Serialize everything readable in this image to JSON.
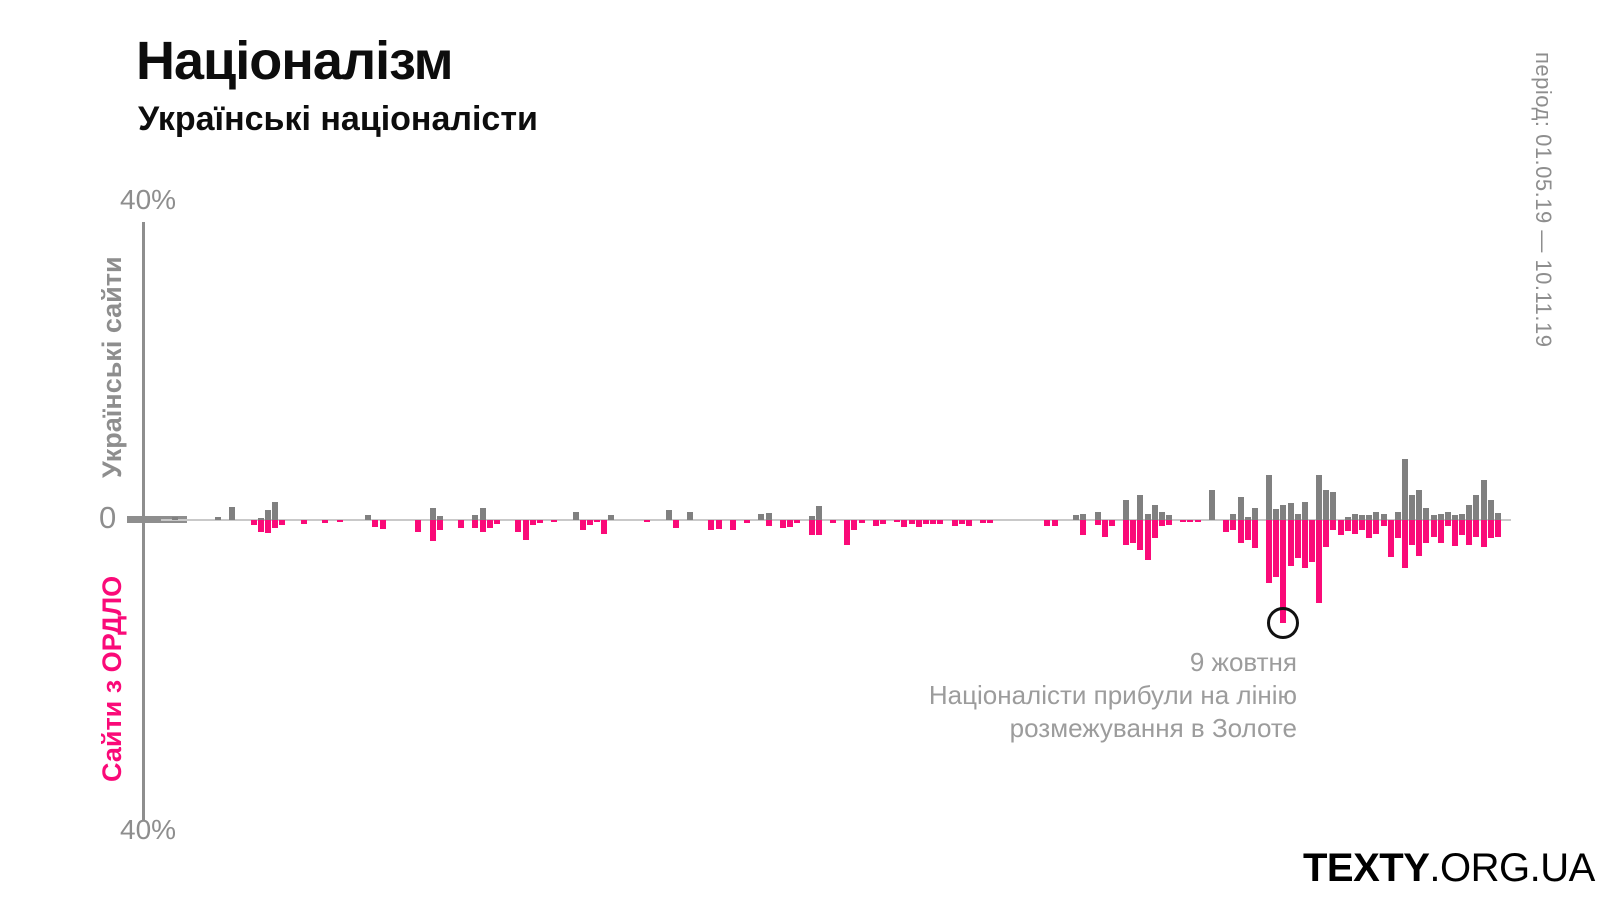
{
  "header": {
    "title": "Націоналізм",
    "subtitle": "Українські націоналісти"
  },
  "period_note": "період: 01.05.19 — 10.11.19",
  "axis": {
    "top_label": "40%",
    "zero_label": "0",
    "bottom_label": "40%",
    "up_series_label": "Українські сайти",
    "down_series_label": "Сайти з ОРДЛО"
  },
  "annotation": {
    "lines": [
      "9 жовтня",
      "Націоналісти прибули на лінію",
      "розмежування в Золоте"
    ],
    "bar_index": 156
  },
  "branding": {
    "bold": "TEXTY",
    "rest": ".ORG.UA"
  },
  "colors": {
    "up": "#808080",
    "down": "#fa0a78",
    "axis": "#8e8e8e",
    "zero_line": "#c9c9c9",
    "annotation_text": "#9c9c9c",
    "circle": "#111111",
    "title": "#0d0d0d"
  },
  "chart_data": {
    "type": "bar",
    "orientation": "diverging-vertical",
    "title": "Націоналізм — Українські націоналісти",
    "unit": "%",
    "ylim": [
      -40,
      40
    ],
    "y_ticks": [
      "40%",
      "0",
      "40%"
    ],
    "x_period": "01.05.19 — 10.11.19",
    "n_bars": 187,
    "grid": false,
    "legend_position": "left-axis-rotated",
    "series": [
      {
        "name": "Українські сайти",
        "direction": "up",
        "color": "#808080"
      },
      {
        "name": "Сайти з ОРДЛО",
        "direction": "down",
        "color": "#fa0a78"
      }
    ],
    "bars_format": [
      "bar_index",
      "up_pct",
      "down_pct"
    ],
    "bars": [
      [
        1,
        0.4,
        0
      ],
      [
        7,
        0.4,
        0
      ],
      [
        9,
        1.6,
        0
      ],
      [
        12,
        0,
        0.6
      ],
      [
        13,
        0.3,
        1.5
      ],
      [
        14,
        1.2,
        1.6
      ],
      [
        15,
        2.2,
        1.0
      ],
      [
        16,
        0,
        0.6
      ],
      [
        19,
        0,
        0.5
      ],
      [
        22,
        0,
        0.4
      ],
      [
        24,
        0,
        0.3
      ],
      [
        28,
        0.6,
        0
      ],
      [
        29,
        0,
        0.9
      ],
      [
        30,
        0,
        1.1
      ],
      [
        35,
        0,
        1.5
      ],
      [
        37,
        1.5,
        2.6
      ],
      [
        38,
        0.5,
        1.3
      ],
      [
        41,
        0,
        1.0
      ],
      [
        43,
        0.6,
        1.0
      ],
      [
        44,
        1.5,
        1.5
      ],
      [
        45,
        0,
        1.0
      ],
      [
        46,
        0,
        0.5
      ],
      [
        49,
        0,
        1.5
      ],
      [
        50,
        0,
        2.5
      ],
      [
        51,
        0,
        0.6
      ],
      [
        52,
        0,
        0.4
      ],
      [
        54,
        0,
        0.3
      ],
      [
        57,
        1.0,
        0
      ],
      [
        58,
        0,
        1.2
      ],
      [
        59,
        0,
        0.6
      ],
      [
        60,
        0,
        0.3
      ],
      [
        61,
        0,
        1.7
      ],
      [
        62,
        0.6,
        0
      ],
      [
        67,
        0,
        0.3
      ],
      [
        70,
        1.2,
        0
      ],
      [
        71,
        0,
        1.0
      ],
      [
        73,
        1.0,
        0
      ],
      [
        76,
        0,
        1.2
      ],
      [
        77,
        0,
        1.1
      ],
      [
        79,
        0,
        1.2
      ],
      [
        81,
        0,
        0.4
      ],
      [
        83,
        0.7,
        0
      ],
      [
        84,
        0.9,
        0.7
      ],
      [
        86,
        0,
        1.0
      ],
      [
        87,
        0,
        0.9
      ],
      [
        88,
        0,
        0.4
      ],
      [
        90,
        0.5,
        1.9
      ],
      [
        91,
        1.8,
        1.9
      ],
      [
        93,
        0,
        0.4
      ],
      [
        95,
        0,
        3.1
      ],
      [
        96,
        0,
        1.2
      ],
      [
        97,
        0,
        0.4
      ],
      [
        99,
        0,
        0.7
      ],
      [
        100,
        0,
        0.5
      ],
      [
        102,
        0,
        0.3
      ],
      [
        103,
        0,
        0.9
      ],
      [
        104,
        0,
        0.5
      ],
      [
        105,
        0,
        0.9
      ],
      [
        106,
        0,
        0.5
      ],
      [
        107,
        0,
        0.5
      ],
      [
        108,
        0,
        0.5
      ],
      [
        110,
        0,
        0.7
      ],
      [
        111,
        0,
        0.5
      ],
      [
        112,
        0,
        0.7
      ],
      [
        114,
        0,
        0.4
      ],
      [
        115,
        0,
        0.4
      ],
      [
        123,
        0,
        0.7
      ],
      [
        124,
        0,
        0.7
      ],
      [
        127,
        0.6,
        0
      ],
      [
        128,
        0.8,
        1.9
      ],
      [
        130,
        1.0,
        0.6
      ],
      [
        131,
        0,
        2.1
      ],
      [
        132,
        0,
        0.8
      ],
      [
        134,
        2.5,
        3.1
      ],
      [
        135,
        0,
        2.9
      ],
      [
        136,
        3.1,
        3.8
      ],
      [
        137,
        0.8,
        5.0
      ],
      [
        138,
        1.9,
        2.3
      ],
      [
        139,
        1.0,
        0.8
      ],
      [
        140,
        0.6,
        0.6
      ],
      [
        142,
        0,
        0.3
      ],
      [
        143,
        0,
        0.3
      ],
      [
        144,
        0,
        0.3
      ],
      [
        146,
        3.8,
        0
      ],
      [
        148,
        0,
        1.5
      ],
      [
        149,
        0.8,
        1.2
      ],
      [
        150,
        2.9,
        2.9
      ],
      [
        151,
        0.4,
        2.5
      ],
      [
        152,
        1.5,
        3.5
      ],
      [
        154,
        5.6,
        7.9
      ],
      [
        155,
        1.4,
        7.1
      ],
      [
        156,
        1.9,
        12.9
      ],
      [
        157,
        2.1,
        5.8
      ],
      [
        158,
        0.8,
        4.8
      ],
      [
        159,
        2.3,
        6.0
      ],
      [
        160,
        0,
        5.2
      ],
      [
        161,
        5.6,
        10.4
      ],
      [
        162,
        3.7,
        3.4
      ],
      [
        163,
        3.5,
        1.2
      ],
      [
        164,
        0,
        1.9
      ],
      [
        165,
        0.4,
        1.4
      ],
      [
        166,
        0.8,
        1.7
      ],
      [
        167,
        0.6,
        1.2
      ],
      [
        168,
        0.6,
        2.3
      ],
      [
        169,
        1.0,
        1.7
      ],
      [
        170,
        0.8,
        0.8
      ],
      [
        171,
        0,
        4.6
      ],
      [
        172,
        1.0,
        2.3
      ],
      [
        173,
        7.6,
        6.0
      ],
      [
        174,
        3.1,
        3.1
      ],
      [
        175,
        3.8,
        4.5
      ],
      [
        176,
        1.5,
        2.9
      ],
      [
        177,
        0.6,
        2.1
      ],
      [
        178,
        0.8,
        2.9
      ],
      [
        179,
        1.0,
        0.8
      ],
      [
        180,
        0.6,
        3.3
      ],
      [
        181,
        0.8,
        1.9
      ],
      [
        182,
        1.9,
        3.1
      ],
      [
        183,
        3.1,
        2.1
      ],
      [
        184,
        5.0,
        3.4
      ],
      [
        185,
        2.5,
        2.3
      ],
      [
        186,
        0.9,
        2.1
      ]
    ]
  }
}
